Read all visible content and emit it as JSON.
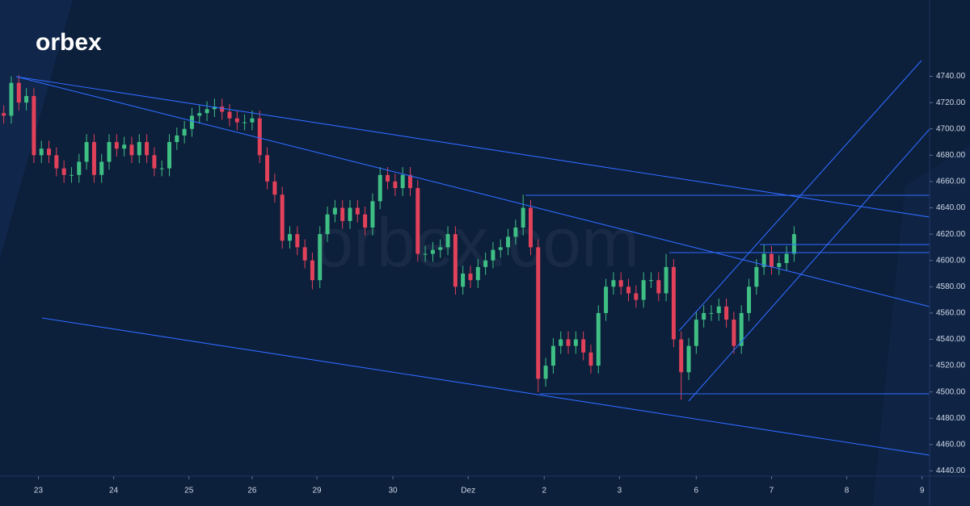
{
  "logo": "orbex",
  "watermark": "orbex.com",
  "chart_data": {
    "type": "candlestick",
    "up_color": "#3fbf84",
    "down_color": "#e2415a",
    "xlim": [
      -0.5,
      123
    ],
    "ylim": [
      4436,
      4798
    ],
    "yticks": [
      {
        "value": 4440,
        "label": "4440.00"
      },
      {
        "value": 4460,
        "label": "4460.00"
      },
      {
        "value": 4480,
        "label": "4480.00"
      },
      {
        "value": 4500,
        "label": "4500.00"
      },
      {
        "value": 4520,
        "label": "4520.00"
      },
      {
        "value": 4540,
        "label": "4540.00"
      },
      {
        "value": 4560,
        "label": "4560.00"
      },
      {
        "value": 4580,
        "label": "4580.00"
      },
      {
        "value": 4600,
        "label": "4600.00"
      },
      {
        "value": 4620,
        "label": "4620.00"
      },
      {
        "value": 4640,
        "label": "4640.00"
      },
      {
        "value": 4660,
        "label": "4660.00"
      },
      {
        "value": 4680,
        "label": "4680.00"
      },
      {
        "value": 4700,
        "label": "4700.00"
      },
      {
        "value": 4720,
        "label": "4720.00"
      },
      {
        "value": 4740,
        "label": "4740.00"
      }
    ],
    "xticks": [
      {
        "value": 4.6,
        "label": "23"
      },
      {
        "value": 14.6,
        "label": "24"
      },
      {
        "value": 24.6,
        "label": "25"
      },
      {
        "value": 33,
        "label": "26"
      },
      {
        "value": 41.6,
        "label": "29"
      },
      {
        "value": 51.7,
        "label": "30"
      },
      {
        "value": 61.7,
        "label": "Dez"
      },
      {
        "value": 71.8,
        "label": "2"
      },
      {
        "value": 81.8,
        "label": "3"
      },
      {
        "value": 92,
        "label": "6"
      },
      {
        "value": 102,
        "label": "7"
      },
      {
        "value": 112,
        "label": "8"
      },
      {
        "value": 122,
        "label": "9"
      }
    ],
    "open": [
      4712,
      4710,
      4735,
      4720,
      4725,
      4680,
      4685,
      4680,
      4670,
      4665,
      4665,
      4675,
      4690,
      4665,
      4675,
      4690,
      4685,
      4688,
      4680,
      4690,
      4680,
      4670,
      4670,
      4690,
      4695,
      4700,
      4710,
      4712,
      4715,
      4717,
      4713,
      4708,
      4705,
      4705,
      4708,
      4680,
      4660,
      4650,
      4615,
      4620,
      4610,
      4600,
      4585,
      4620,
      4635,
      4640,
      4630,
      4640,
      4635,
      4625,
      4645,
      4665,
      4660,
      4655,
      4665,
      4655,
      4605,
      4605,
      4608,
      4610,
      4620,
      4580,
      4590,
      4585,
      4595,
      4600,
      4608,
      4610,
      4618,
      4625,
      4640,
      4610,
      4510,
      4520,
      4535,
      4540,
      4535,
      4540,
      4530,
      4520,
      4560,
      4580,
      4585,
      4580,
      4575,
      4570,
      4585,
      4585,
      4575,
      4595,
      4540,
      4515,
      4535,
      4555,
      4560,
      4560,
      4565,
      4555,
      4535,
      4560,
      4580,
      4595,
      4605,
      4595,
      4598,
      4605
    ],
    "high": [
      4718,
      4740,
      4741,
      4731,
      4731,
      4691,
      4691,
      4686,
      4676,
      4671,
      4681,
      4696,
      4696,
      4681,
      4696,
      4696,
      4694,
      4694,
      4696,
      4696,
      4686,
      4676,
      4696,
      4701,
      4706,
      4716,
      4718,
      4721,
      4723,
      4723,
      4719,
      4714,
      4711,
      4714,
      4714,
      4686,
      4666,
      4656,
      4626,
      4626,
      4616,
      4606,
      4626,
      4641,
      4646,
      4646,
      4646,
      4646,
      4641,
      4651,
      4671,
      4671,
      4666,
      4671,
      4671,
      4661,
      4611,
      4614,
      4616,
      4626,
      4626,
      4596,
      4596,
      4601,
      4606,
      4614,
      4616,
      4624,
      4631,
      4650,
      4646,
      4616,
      4526,
      4541,
      4546,
      4546,
      4546,
      4546,
      4536,
      4566,
      4586,
      4591,
      4591,
      4586,
      4581,
      4591,
      4591,
      4591,
      4605,
      4601,
      4546,
      4541,
      4561,
      4566,
      4566,
      4571,
      4571,
      4561,
      4566,
      4586,
      4601,
      4612,
      4611,
      4604,
      4611,
      4626
    ],
    "low": [
      4704,
      4704,
      4714,
      4714,
      4674,
      4674,
      4674,
      4664,
      4659,
      4659,
      4659,
      4669,
      4659,
      4659,
      4669,
      4679,
      4679,
      4674,
      4674,
      4674,
      4664,
      4664,
      4664,
      4684,
      4689,
      4694,
      4704,
      4706,
      4709,
      4707,
      4702,
      4699,
      4699,
      4699,
      4674,
      4654,
      4644,
      4609,
      4609,
      4604,
      4594,
      4578,
      4579,
      4614,
      4629,
      4624,
      4624,
      4629,
      4619,
      4619,
      4639,
      4654,
      4649,
      4649,
      4649,
      4599,
      4599,
      4599,
      4602,
      4604,
      4574,
      4574,
      4579,
      4579,
      4589,
      4594,
      4602,
      4604,
      4612,
      4619,
      4604,
      4500,
      4504,
      4514,
      4529,
      4529,
      4529,
      4524,
      4514,
      4514,
      4554,
      4574,
      4574,
      4569,
      4564,
      4564,
      4579,
      4569,
      4569,
      4534,
      4494,
      4509,
      4529,
      4549,
      4554,
      4554,
      4549,
      4529,
      4529,
      4554,
      4574,
      4589,
      4589,
      4589,
      4592,
      4599
    ],
    "close": [
      4710,
      4735,
      4720,
      4725,
      4680,
      4685,
      4680,
      4670,
      4665,
      4665,
      4675,
      4690,
      4665,
      4675,
      4690,
      4685,
      4688,
      4680,
      4690,
      4680,
      4670,
      4670,
      4690,
      4695,
      4700,
      4710,
      4712,
      4715,
      4717,
      4713,
      4708,
      4705,
      4705,
      4708,
      4680,
      4660,
      4650,
      4615,
      4620,
      4610,
      4600,
      4585,
      4620,
      4635,
      4640,
      4630,
      4640,
      4635,
      4625,
      4645,
      4665,
      4660,
      4655,
      4665,
      4655,
      4605,
      4605,
      4608,
      4610,
      4620,
      4580,
      4590,
      4585,
      4595,
      4600,
      4608,
      4610,
      4618,
      4625,
      4640,
      4610,
      4510,
      4520,
      4535,
      4540,
      4535,
      4540,
      4530,
      4520,
      4560,
      4580,
      4585,
      4580,
      4575,
      4570,
      4585,
      4585,
      4575,
      4595,
      4540,
      4515,
      4535,
      4555,
      4560,
      4560,
      4565,
      4555,
      4535,
      4560,
      4580,
      4595,
      4605,
      4595,
      4598,
      4605,
      4620
    ]
  }
}
